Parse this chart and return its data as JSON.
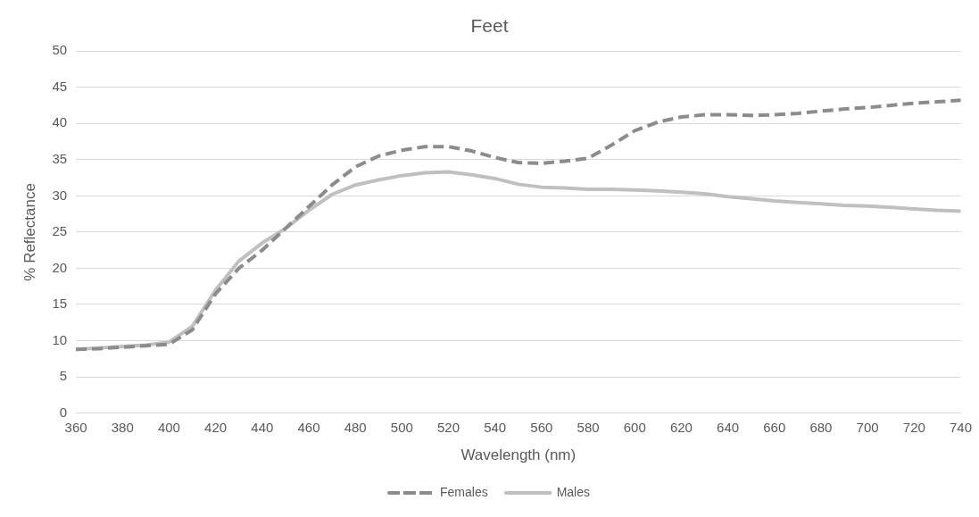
{
  "chart_data": {
    "type": "line",
    "title": "Feet",
    "xlabel": "Wavelength (nm)",
    "ylabel": "% Reflectance",
    "categories": [
      "360",
      null,
      "380",
      null,
      "400",
      null,
      "420",
      null,
      "440",
      null,
      "460",
      null,
      "480",
      null,
      "500",
      null,
      "520",
      null,
      "540",
      null,
      "560",
      null,
      "580",
      null,
      "600",
      null,
      "620",
      null,
      "640",
      null,
      "660",
      null,
      "680",
      null,
      "700",
      null,
      "720",
      null,
      "740"
    ],
    "series": [
      {
        "name": "Females",
        "color": "#8c8c8c",
        "line_style": "dashed",
        "values": [
          8.8,
          8.9,
          9.1,
          9.3,
          9.5,
          11.5,
          16.5,
          20,
          22.5,
          25.5,
          28.5,
          31.5,
          34,
          35.5,
          36.3,
          36.8,
          36.8,
          36.2,
          35.3,
          34.6,
          34.5,
          34.8,
          35.2,
          37,
          39,
          40.2,
          40.9,
          41.2,
          41.2,
          41.1,
          41.2,
          41.4,
          41.7,
          42,
          42.2,
          42.5,
          42.8,
          43,
          43.2
        ]
      },
      {
        "name": "Males",
        "color": "#c0c0c0",
        "line_style": "solid",
        "values": [
          8.8,
          9,
          9.2,
          9.4,
          9.8,
          12,
          17,
          21,
          23.5,
          25.5,
          28,
          30.2,
          31.5,
          32.2,
          32.8,
          33.2,
          33.3,
          32.9,
          32.4,
          31.6,
          31.2,
          31.1,
          30.9,
          30.9,
          30.8,
          30.7,
          30.5,
          30.3,
          29.9,
          29.6,
          29.3,
          29.1,
          28.9,
          28.7,
          28.6,
          28.4,
          28.2,
          28,
          27.9
        ]
      }
    ],
    "ylim": [
      0,
      50
    ],
    "yticks": [
      0,
      5,
      10,
      15,
      20,
      25,
      30,
      35,
      40,
      45,
      50
    ],
    "grid": "y",
    "legend": "bottom",
    "marker": "none"
  }
}
